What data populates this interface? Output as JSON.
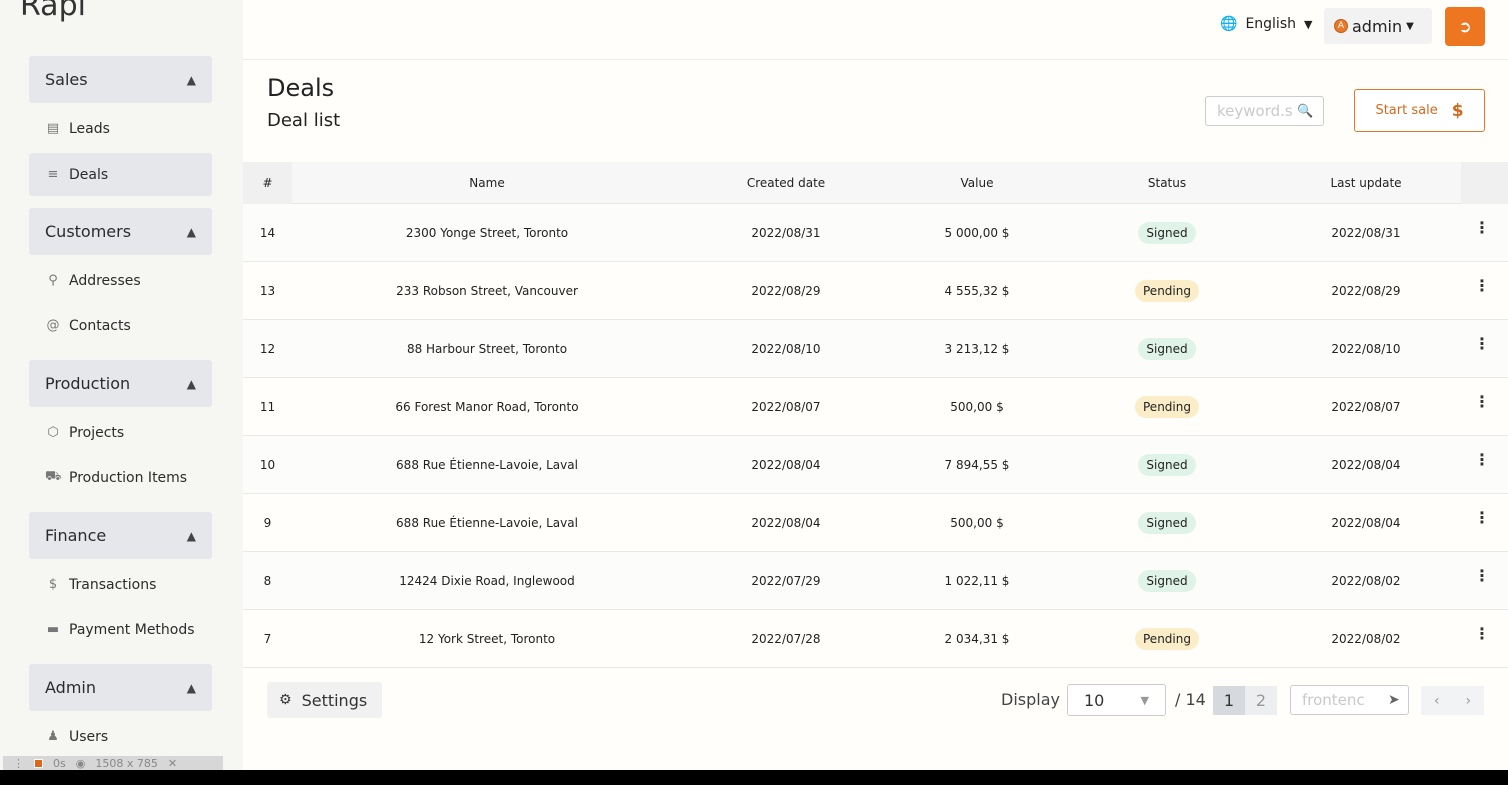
{
  "logo": "Rapi",
  "sidebar": {
    "sections": [
      {
        "label": "Sales",
        "items": [
          {
            "label": "Leads",
            "icon": "book-icon"
          },
          {
            "label": "Deals",
            "icon": "list-icon",
            "active": true
          }
        ]
      },
      {
        "label": "Customers",
        "items": [
          {
            "label": "Addresses",
            "icon": "map-pin-icon"
          },
          {
            "label": "Contacts",
            "icon": "at-icon"
          }
        ]
      },
      {
        "label": "Production",
        "items": [
          {
            "label": "Projects",
            "icon": "cube-icon"
          },
          {
            "label": "Production Items",
            "icon": "truck-icon"
          }
        ]
      },
      {
        "label": "Finance",
        "items": [
          {
            "label": "Transactions",
            "icon": "dollar-icon"
          },
          {
            "label": "Payment Methods",
            "icon": "credit-card-icon"
          }
        ]
      },
      {
        "label": "Admin",
        "items": [
          {
            "label": "Users",
            "icon": "user-icon"
          }
        ]
      }
    ]
  },
  "topbar": {
    "language": "English",
    "user": "admin",
    "avatar_letter": "A"
  },
  "page": {
    "title": "Deals",
    "subtitle": "Deal list",
    "search_placeholder": "keyword.s",
    "start_sale_label": "Start sale"
  },
  "table": {
    "headers": {
      "num": "#",
      "name": "Name",
      "created": "Created date",
      "value": "Value",
      "status": "Status",
      "updated": "Last update"
    },
    "rows": [
      {
        "num": "14",
        "name": "2300 Yonge Street, Toronto",
        "created": "2022/08/31",
        "value": "5 000,00 $",
        "status": "Signed",
        "updated": "2022/08/31"
      },
      {
        "num": "13",
        "name": "233 Robson Street, Vancouver",
        "created": "2022/08/29",
        "value": "4 555,32 $",
        "status": "Pending",
        "updated": "2022/08/29"
      },
      {
        "num": "12",
        "name": "88 Harbour Street, Toronto",
        "created": "2022/08/10",
        "value": "3 213,12 $",
        "status": "Signed",
        "updated": "2022/08/10"
      },
      {
        "num": "11",
        "name": "66 Forest Manor Road, Toronto",
        "created": "2022/08/07",
        "value": "500,00 $",
        "status": "Pending",
        "updated": "2022/08/07"
      },
      {
        "num": "10",
        "name": "688 Rue Étienne-Lavoie, Laval",
        "created": "2022/08/04",
        "value": "7 894,55 $",
        "status": "Signed",
        "updated": "2022/08/04"
      },
      {
        "num": "9",
        "name": "688 Rue Étienne-Lavoie, Laval",
        "created": "2022/08/04",
        "value": "500,00 $",
        "status": "Signed",
        "updated": "2022/08/04"
      },
      {
        "num": "8",
        "name": "12424 Dixie Road, Inglewood",
        "created": "2022/07/29",
        "value": "1 022,11 $",
        "status": "Signed",
        "updated": "2022/08/02"
      },
      {
        "num": "7",
        "name": "12 York Street, Toronto",
        "created": "2022/07/28",
        "value": "2 034,31 $",
        "status": "Pending",
        "updated": "2022/08/02"
      }
    ]
  },
  "footer": {
    "settings_label": "Settings",
    "display_label": "Display",
    "display_value": "10",
    "total": "/ 14",
    "pages": [
      "1",
      "2"
    ],
    "goto_placeholder": "frontenc"
  },
  "overlay": {
    "time": "0s",
    "size": "1508 x 785"
  }
}
